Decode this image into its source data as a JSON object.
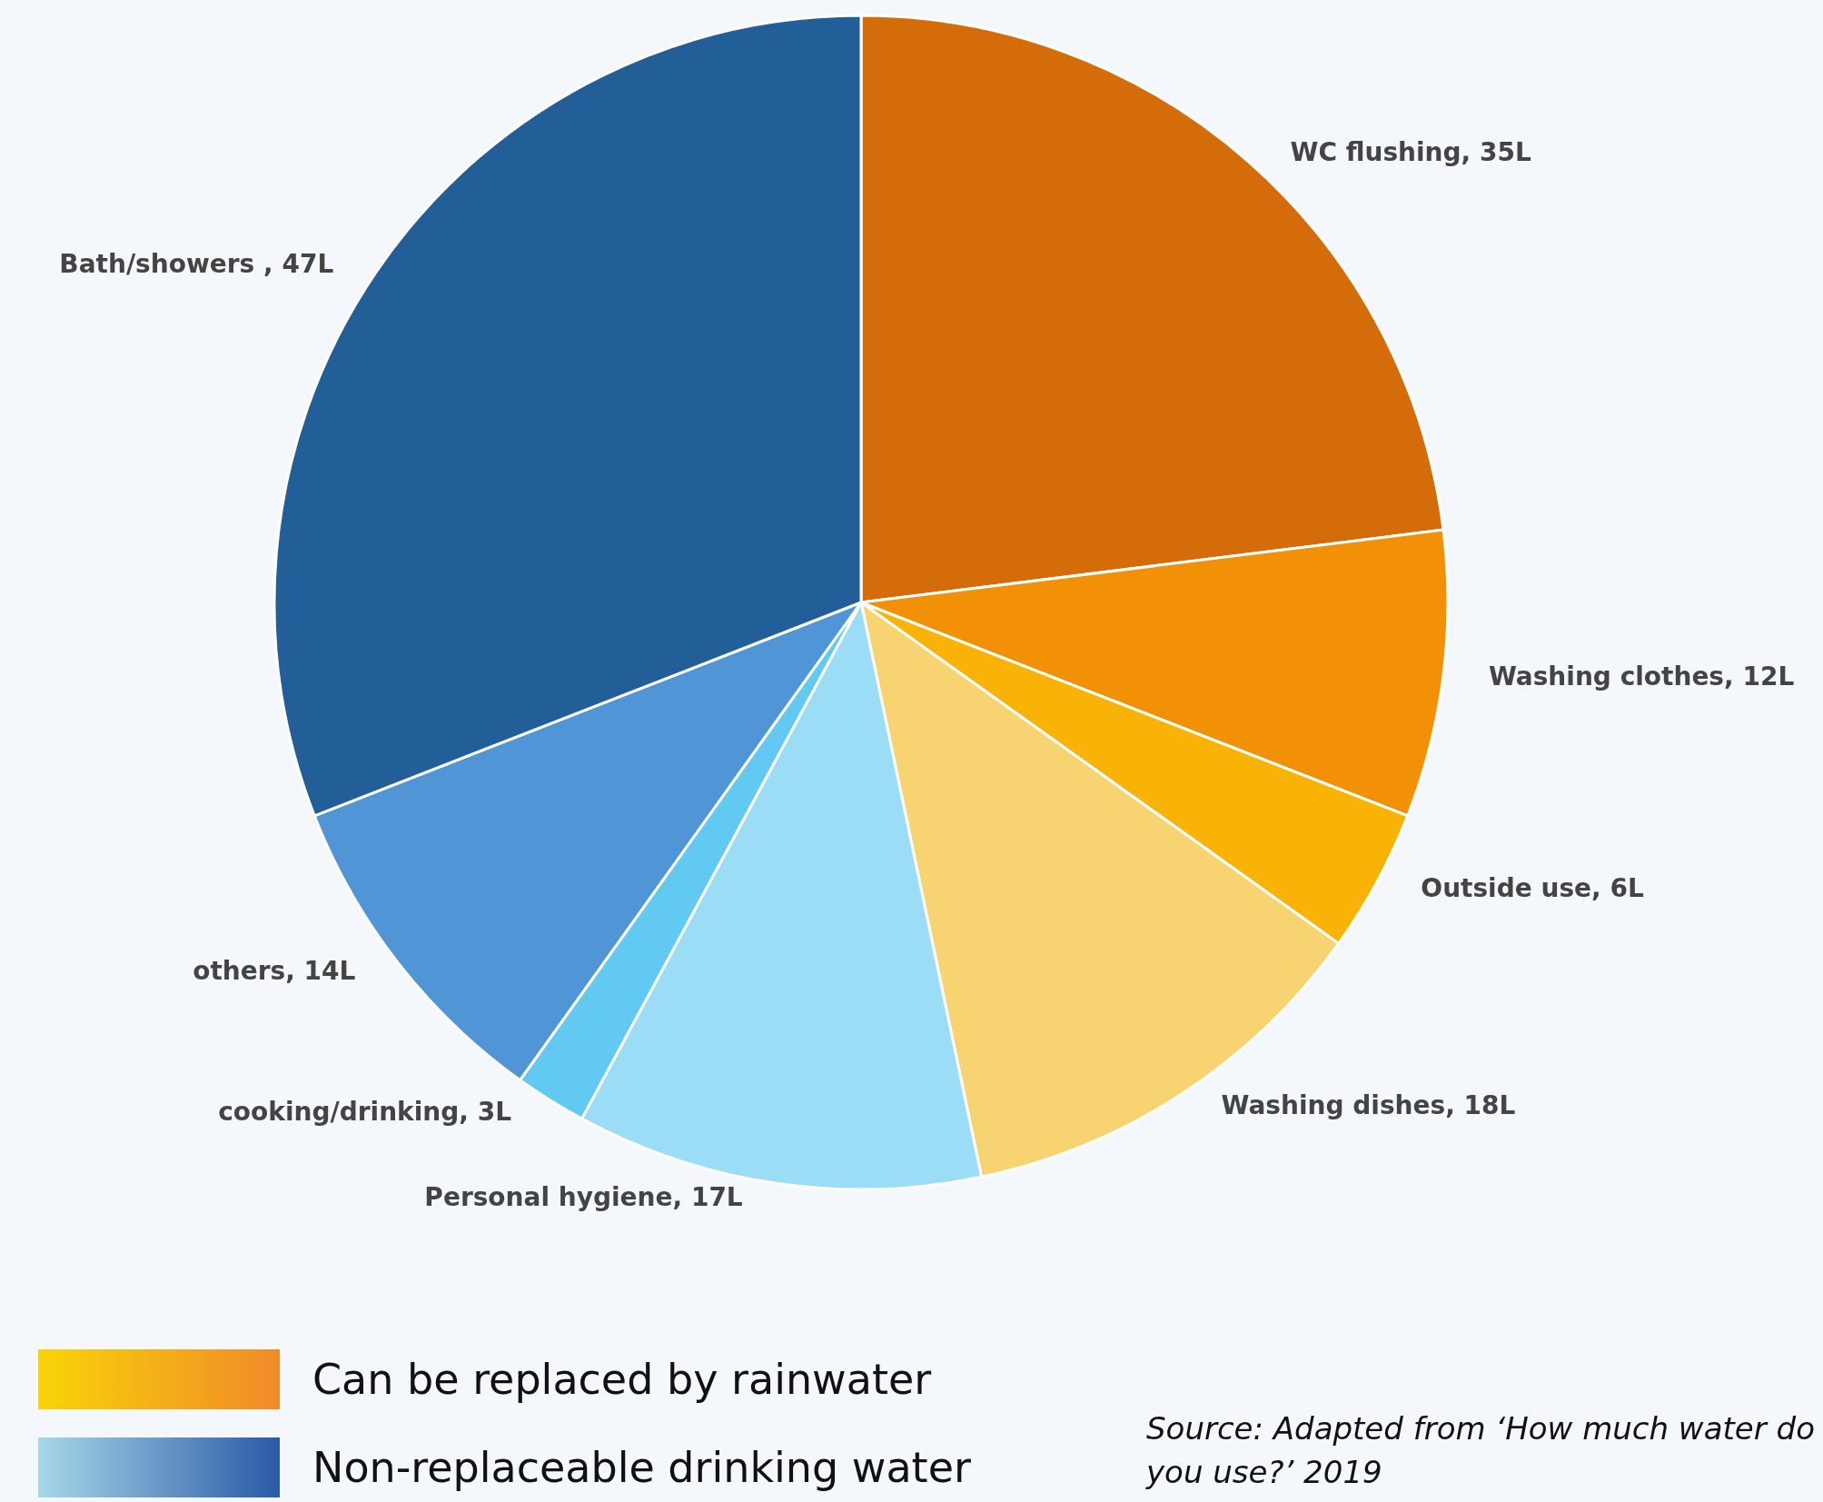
{
  "chart_data": {
    "type": "pie",
    "categories": [
      "WC flushing",
      "Washing clothes",
      "Outside use",
      "Washing dishes",
      "Personal hygiene",
      "cooking/drinking",
      "others",
      "Bath/showers "
    ],
    "values": [
      35,
      12,
      6,
      18,
      17,
      3,
      14,
      47
    ],
    "value_labels": [
      "35L",
      "12L",
      "6L",
      "18L",
      "17L",
      "3L",
      "14L",
      "47L"
    ],
    "colors": [
      "#d36c09",
      "#f39106",
      "#f9b307",
      "#f8d372",
      "#9bdcf7",
      "#62caf2",
      "#5096d7",
      "#225f99"
    ],
    "annotations": [
      "Can be replaced by rainwater",
      "Non-replaceable drinking water",
      "Source: Adapted from ‘How much water do you use?’ 2019"
    ]
  }
}
